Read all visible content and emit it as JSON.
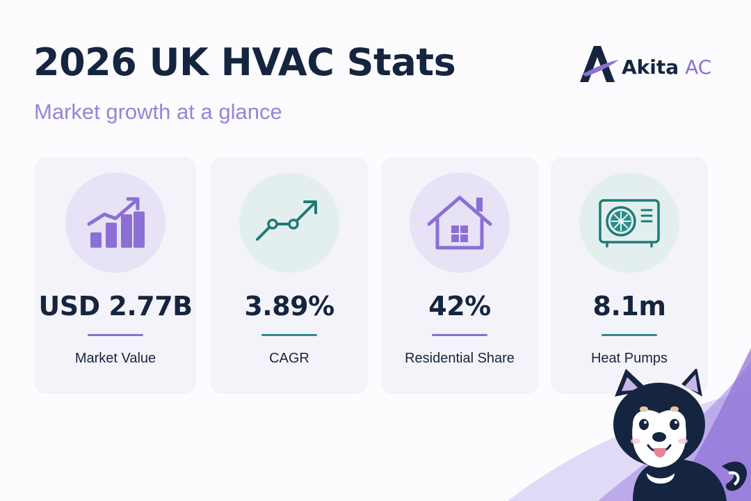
{
  "header": {
    "title": "2026 UK HVAC Stats",
    "subtitle": "Market growth at a glance"
  },
  "brand": {
    "name": "Akita",
    "suffix": "AC",
    "colors": {
      "navy": "#15253f",
      "purple": "#8b6fd6",
      "teal": "#1f7a78"
    }
  },
  "stats": [
    {
      "value": "USD 2.77B",
      "label": "Market Value",
      "icon": "bar-chart-growth-icon",
      "accent": "#8b6fd6"
    },
    {
      "value": "3.89%",
      "label": "CAGR",
      "icon": "line-trend-icon",
      "accent": "#2a8c8a"
    },
    {
      "value": "42%",
      "label": "Residential Share",
      "icon": "house-icon",
      "accent": "#8b6fd6"
    },
    {
      "value": "8.1m",
      "label": "Heat Pumps",
      "icon": "heat-pump-icon",
      "accent": "#2a8c8a"
    }
  ],
  "mascot": {
    "icon": "akita-dog-mascot"
  }
}
